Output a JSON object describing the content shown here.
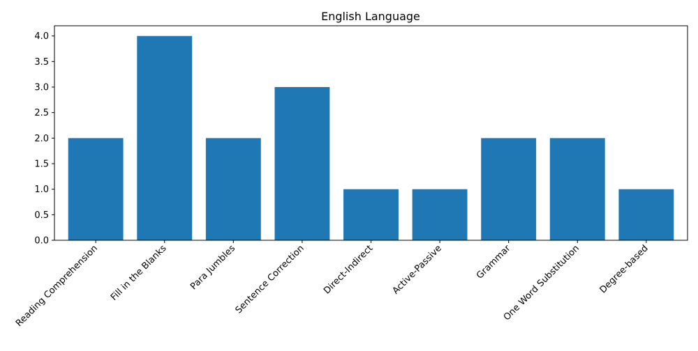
{
  "chart_data": {
    "type": "bar",
    "title": "English Language",
    "xlabel": "",
    "ylabel": "",
    "categories": [
      "Reading Comprehension",
      "Fill in the Blanks",
      "Para Jumbles",
      "Sentence Correction",
      "Direct-Indirect",
      "Active-Passive",
      "Grammar",
      "One Word Substitution",
      "Degree-based"
    ],
    "values": [
      2,
      4,
      2,
      3,
      1,
      1,
      2,
      2,
      1
    ],
    "ylim": [
      0,
      4.2
    ],
    "yticks": [
      "0.0",
      "0.5",
      "1.0",
      "1.5",
      "2.0",
      "2.5",
      "3.0",
      "3.5",
      "4.0"
    ],
    "bar_color": "#1f77b4",
    "grid": false,
    "legend": "none"
  }
}
